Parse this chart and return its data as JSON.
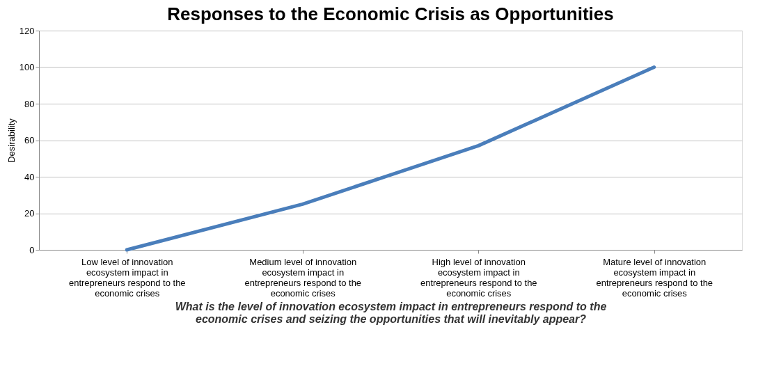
{
  "chart_data": {
    "type": "line",
    "title": "Responses to the Economic Crisis as Opportunities",
    "ylabel": "Desirability",
    "xlabel": "What is the level of innovation  ecosystem impact in entrepreneurs respond to the economic crises and seizing the opportunities  that will inevitably  appear?",
    "categories": [
      "Low level of innovation ecosystem impact in entrepreneurs respond to the economic crises",
      "Medium level of innovation ecosystem impact in entrepreneurs respond to the economic crises",
      "High level of innovation ecosystem impact in entrepreneurs respond to the economic crises",
      "Mature level of innovation ecosystem impact in entrepreneurs respond to the economic crises"
    ],
    "series": [
      {
        "color": "#4a7ebb",
        "values": [
          0,
          25,
          57,
          100
        ]
      }
    ],
    "ylim": [
      0,
      120
    ],
    "yticks": [
      0,
      20,
      40,
      60,
      80,
      100,
      120
    ],
    "grid": "y",
    "legend": false,
    "marker": "none",
    "line_style": "solid"
  }
}
